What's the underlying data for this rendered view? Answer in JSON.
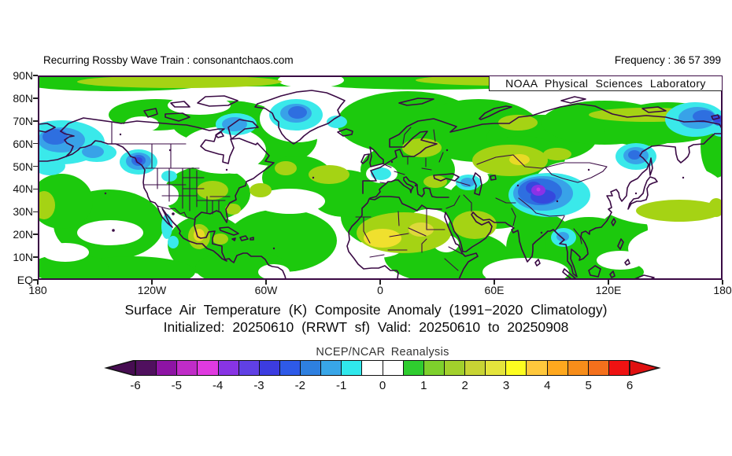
{
  "page": {
    "background": "#ffffff"
  },
  "header": {
    "left": "Recurring Rossby Wave Train : consonantchaos.com",
    "right": "Frequency : 36 57 399"
  },
  "map": {
    "watermark": "NOAA Physical Sciences Laboratory",
    "frame_color": "#3a0a44",
    "coast_color": "#3a0a44",
    "lat_ticks": [
      "90N",
      "80N",
      "70N",
      "60N",
      "50N",
      "40N",
      "30N",
      "20N",
      "10N",
      "EQ"
    ],
    "lon_ticks": [
      "180",
      "120W",
      "60W",
      "0",
      "60E",
      "120E",
      "180"
    ]
  },
  "title": {
    "line1": "Surface Air Temperature (K) Composite Anomaly (1991−2020 Climatology)",
    "line2": "Initialized: 20250610 (RRWT sf) Valid: 20250610 to 20250908"
  },
  "colorbar": {
    "label": "NCEP/NCAR Reanalysis",
    "ticks": [
      "-6",
      "-5",
      "-4",
      "-3",
      "-2",
      "-1",
      "0",
      "1",
      "2",
      "3",
      "4",
      "5",
      "6"
    ],
    "cells": [
      "#50105e",
      "#8e14a4",
      "#c02cc8",
      "#e03ae0",
      "#8834e4",
      "#6040e4",
      "#3c3ce0",
      "#2e5ae8",
      "#2e80e0",
      "#38a6e8",
      "#30e8ec",
      "#ffffff",
      "#ffffff",
      "#2fcc2f",
      "#7ed02c",
      "#a2d02c",
      "#c8d434",
      "#e4e43c",
      "#fdfd20",
      "#ffc83c",
      "#ffa81e",
      "#f78d1a",
      "#f4701c",
      "#ee1212"
    ],
    "left_arrow": "#470d52",
    "right_arrow": "#e01010"
  },
  "chart_data": {
    "type": "heatmap",
    "projection": "equirectangular world map, Northern Hemisphere (EQ to 90N), 180W to 180E",
    "title": "Surface Air Temperature (K) Composite Anomaly (1991−2020 Climatology)",
    "subtitle": "Initialized: 20250610 (RRWT sf) Valid: 20250610 to 20250908",
    "source": "NCEP/NCAR Reanalysis",
    "attribution": "NOAA Physical Sciences Laboratory",
    "units": "K",
    "x_ticks": [
      "180",
      "120W",
      "60W",
      "0",
      "60E",
      "120E",
      "180"
    ],
    "y_ticks": [
      "90N",
      "80N",
      "70N",
      "60N",
      "50N",
      "40N",
      "30N",
      "20N",
      "10N",
      "EQ"
    ],
    "colorbar": {
      "min": -6,
      "max": 6,
      "interval": 0.5,
      "tick_values": [
        -6,
        -5,
        -4,
        -3,
        -2,
        -1,
        0,
        1,
        2,
        3,
        4,
        5,
        6
      ],
      "colors": [
        "#50105e",
        "#8e14a4",
        "#c02cc8",
        "#e03ae0",
        "#8834e4",
        "#6040e4",
        "#3c3ce0",
        "#2e5ae8",
        "#2e80e0",
        "#38a6e8",
        "#30e8ec",
        "#ffffff",
        "#ffffff",
        "#2fcc2f",
        "#7ed02c",
        "#a2d02c",
        "#c8d434",
        "#e4e43c",
        "#fdfd20",
        "#ffc83c",
        "#ffa81e",
        "#f78d1a",
        "#f4701c",
        "#ee1212"
      ]
    },
    "notable_anomalies": [
      {
        "region": "Bering Sea / western Alaska",
        "value_K": "-1 to -2"
      },
      {
        "region": "British Columbia coast",
        "value_K": "-1 to -2.5"
      },
      {
        "region": "Central Greenland",
        "value_K": "-1 to -2"
      },
      {
        "region": "Baffin Island / NE Canada",
        "value_K": "-1 to -2"
      },
      {
        "region": "Central Asia (Tarim Basin / Tibet)",
        "value_K": "-2 to -4"
      },
      {
        "region": "Northern India",
        "value_K": "-1 to -1.5"
      },
      {
        "region": "Caucasus / Caspian region",
        "value_K": "-1 to -1.5"
      },
      {
        "region": "Sea of Okhotsk",
        "value_K": "-1 to -2.5"
      },
      {
        "region": "Chukotka / NE Siberia",
        "value_K": "-1 to -2.5"
      },
      {
        "region": "Sahara (Mali / Niger)",
        "value_K": "+2 to +3"
      },
      {
        "region": "Kazakhstan / western Siberia",
        "value_K": "+1.5 to +2.5"
      },
      {
        "region": "Northwest Pacific 30-40N",
        "value_K": "+1 to +2"
      },
      {
        "region": "Most NH land and ocean",
        "value_K": "+0.5 to +1"
      }
    ]
  }
}
